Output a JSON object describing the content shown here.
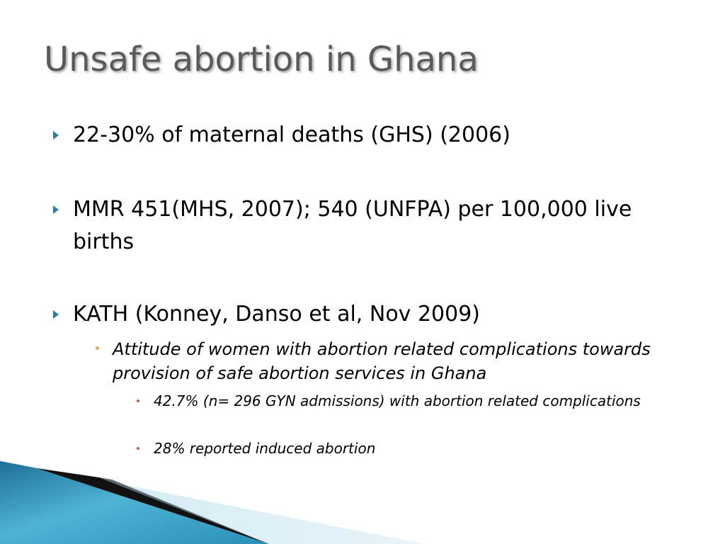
{
  "slide": {
    "title": "Unsafe abortion in Ghana",
    "bullets": [
      "22-30% of maternal deaths (GHS) (2006)",
      "MMR 451(MHS, 2007); 540 (UNFPA) per 100,000 live births",
      "KATH (Konney, Danso et al, Nov 2009)"
    ],
    "sub_bullet": "Attitude of women with abortion related complications towards provision of safe abortion services in Ghana",
    "sub_sub_bullets": [
      "42.7%  (n= 296  GYN admissions) with abortion related complications",
      "28% reported induced abortion"
    ]
  },
  "colors": {
    "title": "#5a5a5a",
    "arrow_bullet": "#2e7fa6",
    "dot_bullet_level2": "#e0a84e",
    "dot_bullet_level3": "#d9533f",
    "accent_blue": "#2a8fb8"
  }
}
